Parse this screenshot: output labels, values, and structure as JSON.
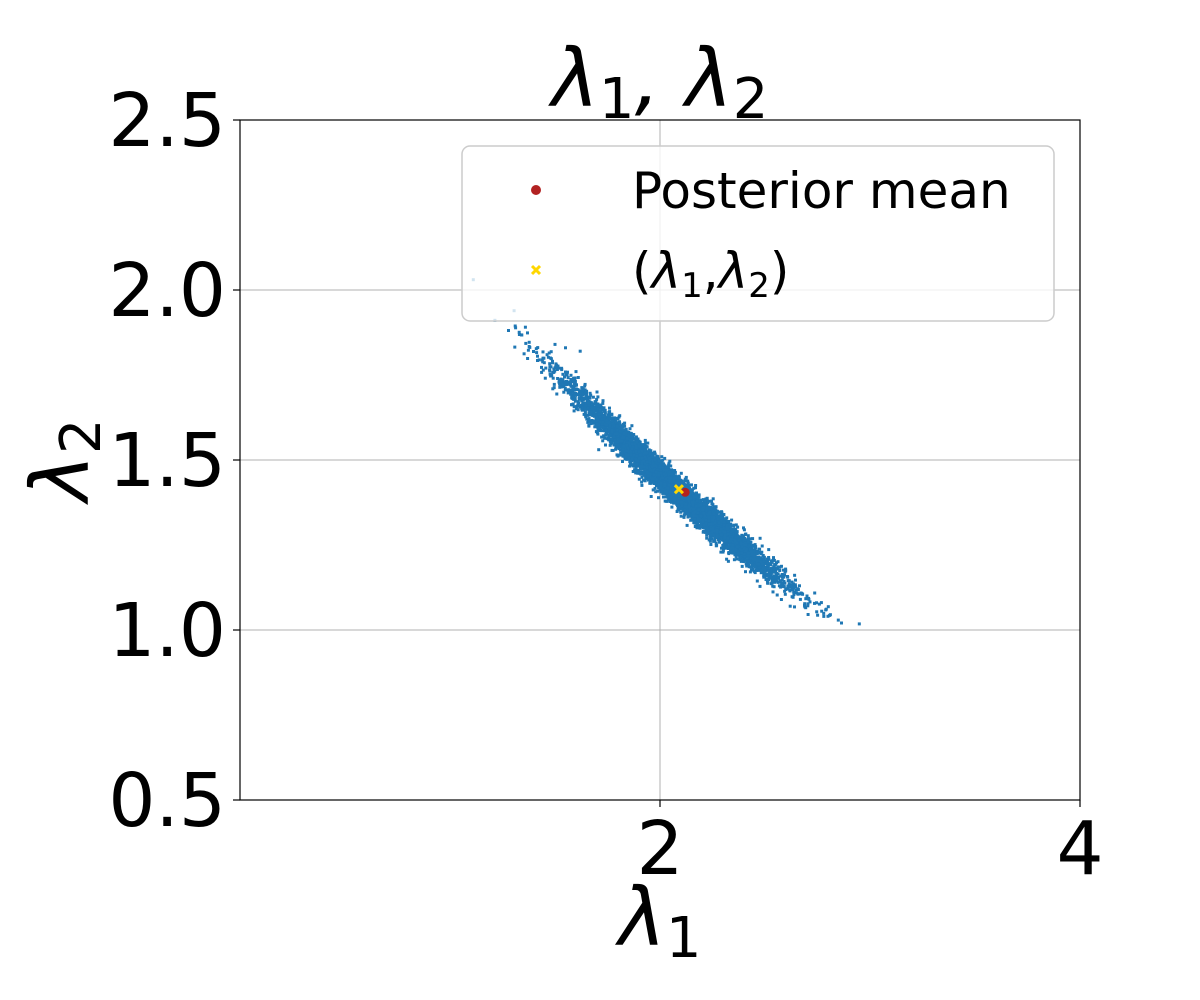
{
  "chart_data": {
    "type": "scatter",
    "title": "λ1, λ2",
    "title_parts": {
      "a": "λ",
      "a_sub": "1",
      "sep": ", ",
      "b": "λ",
      "b_sub": "2"
    },
    "xlabel": "λ",
    "xlabel_sub": "1",
    "ylabel": "λ",
    "ylabel_sub": "2",
    "xlim": [
      0,
      4
    ],
    "ylim": [
      0.5,
      2.5
    ],
    "xticks": [
      2,
      4
    ],
    "xtick_labels": [
      "2",
      "4"
    ],
    "yticks": [
      0.5,
      1.0,
      1.5,
      2.0,
      2.5
    ],
    "ytick_labels": [
      "0.5",
      "1.0",
      "1.5",
      "2.0",
      "2.5"
    ],
    "grid": true,
    "legend_position": "top-right",
    "legend": [
      {
        "label": "Posterior mean",
        "marker": "circle",
        "color": "#b22222"
      },
      {
        "label": "(λ1,λ2)",
        "label_parts": {
          "open": "(",
          "a": "λ",
          "a_sub": "1",
          "sep": ",",
          "b": "λ",
          "b_sub": "2",
          "close": ")"
        },
        "marker": "x",
        "color": "#ffd700"
      }
    ],
    "series": [
      {
        "marker": "dot",
        "color": "#1f77b4",
        "distribution": {
          "center": [
            2.08,
            1.41
          ],
          "slope": -0.56,
          "spread_along": 0.24,
          "spread_across": 0.022,
          "count": 6000
        },
        "points": [
          [
            1.5,
            1.84
          ],
          [
            1.55,
            1.83
          ],
          [
            1.62,
            1.82
          ],
          [
            1.6,
            1.76
          ],
          [
            1.7,
            1.7
          ],
          [
            2.78,
            1.04
          ],
          [
            2.62,
            1.07
          ],
          [
            2.7,
            1.1
          ]
        ]
      },
      {
        "name": "Posterior mean",
        "marker": "circle",
        "color": "#b22222",
        "points": [
          [
            2.12,
            1.405
          ]
        ]
      },
      {
        "name": "(λ1,λ2)",
        "marker": "x",
        "color": "#ffd700",
        "points": [
          [
            2.09,
            1.414
          ]
        ]
      }
    ]
  }
}
